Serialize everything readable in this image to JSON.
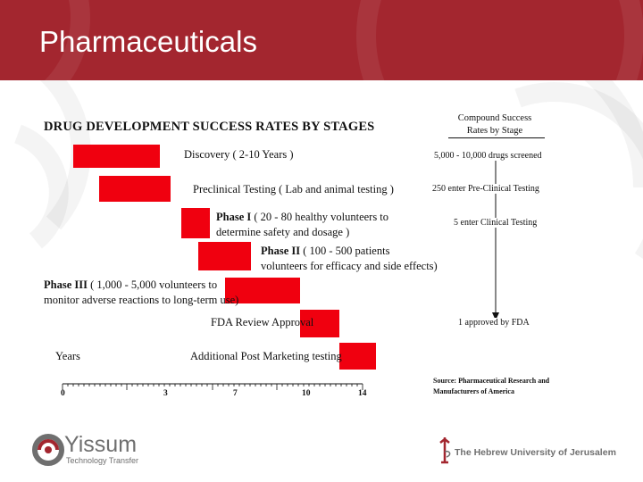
{
  "header": {
    "title": "Pharmaceuticals",
    "background": "#a3262f"
  },
  "diagram": {
    "title": "DRUG DEVELOPMENT SUCCESS RATES BY STAGES",
    "bar_color": "#f0000f",
    "stages": [
      {
        "bold": "",
        "text": "Discovery ( 2-10 Years )",
        "line2": "",
        "start_year": 0.5,
        "end_year": 4.5
      },
      {
        "bold": "",
        "text": "Preclinical Testing ( Lab and animal testing )",
        "line2": "",
        "start_year": 1.7,
        "end_year": 5.0
      },
      {
        "bold": "Phase I",
        "text": " ( 20 - 80 healthy volunteers to",
        "line2": "determine safety and dosage )",
        "start_year": 5.5,
        "end_year": 6.8
      },
      {
        "bold": "Phase II",
        "text": " ( 100 - 500 patients",
        "line2": "volunteers for efficacy and side effects)",
        "start_year": 6.3,
        "end_year": 8.7
      },
      {
        "bold": "Phase III",
        "text": " ( 1,000 - 5,000 volunteers to",
        "line2": "monitor adverse reactions to long-term use)",
        "start_year": 7.5,
        "end_year": 11.0
      },
      {
        "bold": "",
        "text": "FDA Review Approval",
        "line2": "",
        "start_year": 11.0,
        "end_year": 12.8
      },
      {
        "bold": "",
        "text": "Additional Post Marketing testing",
        "line2": "",
        "start_year": 12.8,
        "end_year": 14.5
      }
    ],
    "axis": {
      "label": "Years",
      "ticks": [
        "0",
        "3",
        "7",
        "10",
        "14"
      ]
    }
  },
  "success_rates": {
    "heading_line1": "Compound Success",
    "heading_line2": "Rates by Stage",
    "steps": [
      "5,000 - 10,000 drugs screened",
      "250 enter Pre-Clinical Testing",
      "5 enter Clinical Testing",
      "1 approved by FDA"
    ],
    "source_line1": "Source: Pharmaceutical Research and",
    "source_line2": "Manufacturers of America"
  },
  "footer": {
    "yissum_name": "Yissum",
    "yissum_sub": "Technology Transfer",
    "huji_name": "The Hebrew University of Jerusalem",
    "logo_color": "#6f6f6f",
    "accent": "#a3262f"
  }
}
